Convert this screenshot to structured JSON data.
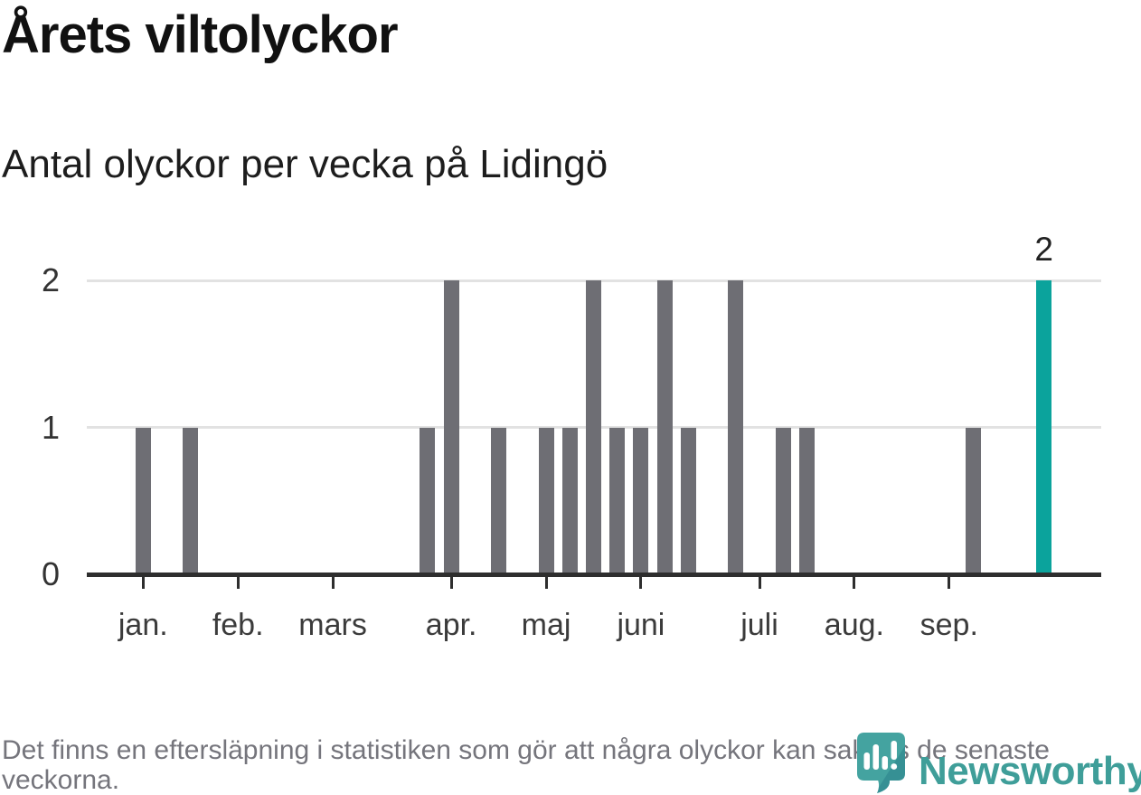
{
  "header": {
    "title": "Årets viltolyckor",
    "subtitle": "Antal olyckor per vecka på Lidingö"
  },
  "chart_data": {
    "type": "bar",
    "title": "Årets viltolyckor",
    "subtitle": "Antal olyckor per vecka på Lidingö",
    "x_unit": "vecka",
    "weeks": [
      1,
      2,
      3,
      4,
      5,
      6,
      7,
      8,
      9,
      10,
      11,
      12,
      13,
      14,
      15,
      16,
      17,
      18,
      19,
      20,
      21,
      22,
      23,
      24,
      25,
      26,
      27,
      28,
      29,
      30,
      31,
      32,
      33,
      34,
      35,
      36,
      37,
      38,
      39
    ],
    "values": [
      1,
      0,
      1,
      0,
      0,
      0,
      0,
      0,
      0,
      0,
      0,
      0,
      1,
      2,
      0,
      1,
      0,
      1,
      1,
      2,
      1,
      1,
      2,
      1,
      0,
      2,
      0,
      1,
      1,
      0,
      0,
      0,
      0,
      0,
      0,
      1,
      0,
      0,
      2
    ],
    "highlight_week": 39,
    "highlight_value_label": "2",
    "bar_color": "#6e6e74",
    "highlight_color": "#0ba39c",
    "grid_color": "#e2e2e2",
    "axis_color": "#2e2e2e",
    "y_axis": {
      "ticks": [
        0,
        1,
        2
      ],
      "tick_labels": [
        "0",
        "1",
        "2"
      ],
      "max": 2,
      "grid": true
    },
    "x_axis_months": [
      {
        "label": "jan.",
        "week": 1
      },
      {
        "label": "feb.",
        "week": 5
      },
      {
        "label": "mars",
        "week": 9
      },
      {
        "label": "apr.",
        "week": 14
      },
      {
        "label": "maj",
        "week": 18
      },
      {
        "label": "juni",
        "week": 22
      },
      {
        "label": "juli",
        "week": 27
      },
      {
        "label": "aug.",
        "week": 31
      },
      {
        "label": "sep.",
        "week": 35
      }
    ],
    "legend": null
  },
  "footer": {
    "note": "Det finns en eftersläpning i statistiken som gör att några olyckor kan saknas de senaste veckorna.",
    "brand": "Newsworthy",
    "brand_color": "#3f9e99"
  }
}
